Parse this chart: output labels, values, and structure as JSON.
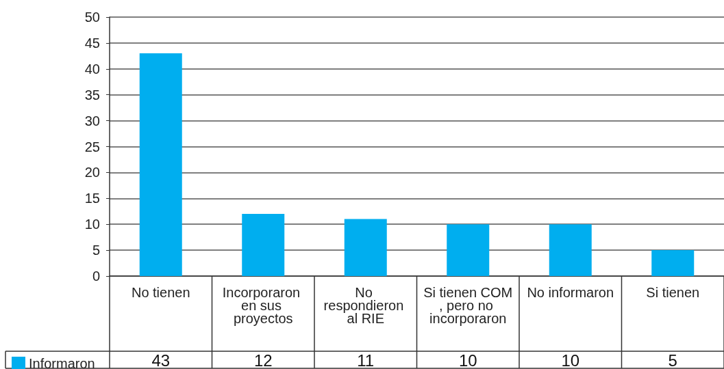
{
  "chart_data": {
    "type": "bar",
    "categories": [
      "No tienen",
      "Incorporaron en sus proyectos",
      "No respondieron al RIE",
      "Si tienen COM, pero no incorporaron",
      "No informaron",
      "Si tienen"
    ],
    "series": [
      {
        "name": "Informaron",
        "color": "#00aeef",
        "values": [
          43,
          12,
          11,
          10,
          10,
          5
        ]
      }
    ],
    "ylim": [
      0,
      50
    ],
    "yticks": [
      0,
      5,
      10,
      15,
      20,
      25,
      30,
      35,
      40,
      45,
      50
    ],
    "grid": "y",
    "legend": "bottom left",
    "data_labels": true
  }
}
